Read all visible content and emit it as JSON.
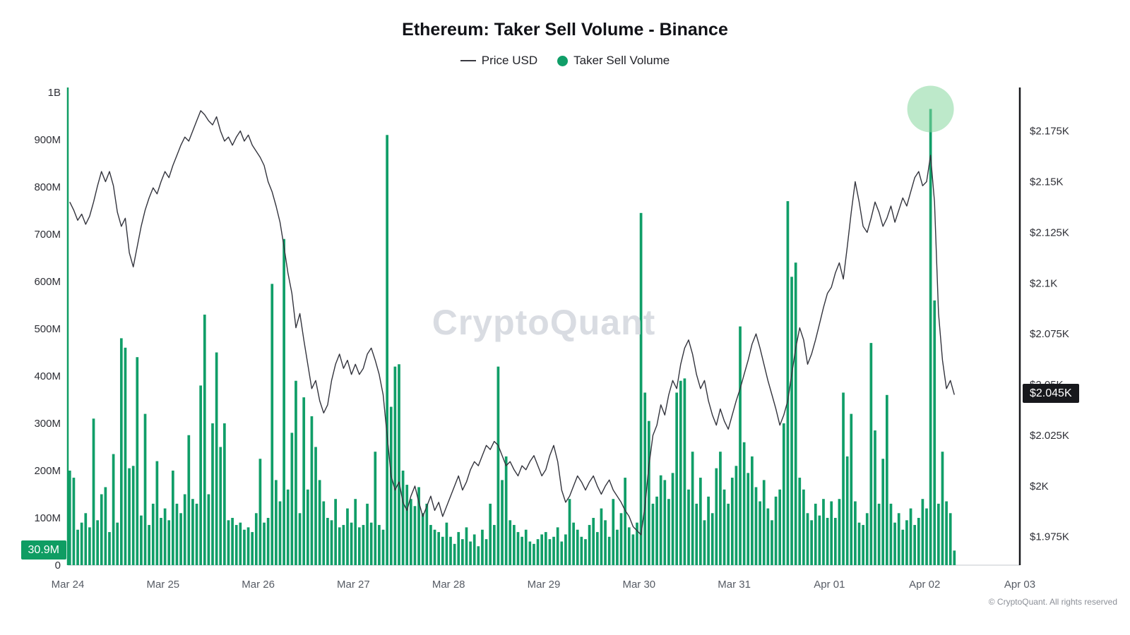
{
  "title": "Ethereum: Taker Sell Volume - Binance",
  "legend": [
    {
      "label": "Price USD",
      "type": "line",
      "color": "#3a3a42"
    },
    {
      "label": "Taker Sell Volume",
      "type": "dot",
      "color": "#109e68"
    }
  ],
  "watermark": "CryptoQuant",
  "footer": "© CryptoQuant. All rights reserved",
  "badges": {
    "volume_current": "30.9M",
    "price_current": "$2.045K"
  },
  "colors": {
    "volume_bar": "#109e68",
    "price_line": "#33343d",
    "left_spine": "#0f9d63",
    "right_spine": "#17181c",
    "baseline": "#d7dade",
    "highlight": "#86d79e"
  },
  "chart_data": {
    "type": "bar+line",
    "title": "Ethereum: Taker Sell Volume - Binance",
    "x_axis": {
      "tick_labels": [
        "Mar 24",
        "Mar 25",
        "Mar 26",
        "Mar 27",
        "Mar 28",
        "Mar 29",
        "Mar 30",
        "Mar 31",
        "Apr 01",
        "Apr 02",
        "Apr 03"
      ],
      "interval": "1 hour",
      "total_hours": 240
    },
    "left_axis": {
      "name": "Taker Sell Volume",
      "unit": "millions",
      "min_m": 0,
      "max_m": 1000,
      "ticks_m": [
        0,
        100,
        200,
        300,
        400,
        500,
        600,
        700,
        800,
        900,
        1000
      ],
      "tick_labels": [
        "0",
        "100M",
        "200M",
        "300M",
        "400M",
        "500M",
        "600M",
        "700M",
        "800M",
        "900M",
        "1B"
      ]
    },
    "right_axis": {
      "name": "Price USD",
      "scale_min": 1961,
      "scale_max": 2194,
      "ticks_usd": [
        1975,
        2000,
        2025,
        2050,
        2075,
        2100,
        2125,
        2150,
        2175
      ],
      "tick_labels": [
        "$1.975K",
        "$2K",
        "$2.025K",
        "$2.05K",
        "$2.075K",
        "$2.1K",
        "$2.125K",
        "$2.15K",
        "$2.175K"
      ]
    },
    "series": [
      {
        "name": "Taker Sell Volume",
        "type": "bar",
        "color": "#109e68",
        "unit": "M",
        "values_m": [
          200,
          185,
          75,
          90,
          110,
          80,
          310,
          95,
          150,
          165,
          70,
          235,
          90,
          480,
          460,
          205,
          210,
          440,
          105,
          320,
          85,
          130,
          220,
          100,
          120,
          95,
          200,
          130,
          110,
          150,
          275,
          140,
          130,
          380,
          530,
          150,
          300,
          450,
          250,
          300,
          95,
          100,
          85,
          90,
          75,
          80,
          70,
          110,
          225,
          90,
          100,
          595,
          180,
          135,
          690,
          160,
          280,
          390,
          110,
          355,
          160,
          315,
          250,
          180,
          135,
          100,
          95,
          140,
          80,
          85,
          120,
          90,
          140,
          80,
          85,
          130,
          90,
          240,
          85,
          75,
          910,
          335,
          420,
          425,
          200,
          170,
          140,
          125,
          165,
          110,
          130,
          85,
          75,
          70,
          60,
          90,
          60,
          45,
          70,
          55,
          80,
          50,
          65,
          40,
          75,
          55,
          130,
          85,
          420,
          180,
          230,
          95,
          85,
          70,
          60,
          75,
          50,
          45,
          55,
          65,
          70,
          55,
          60,
          80,
          50,
          65,
          140,
          90,
          75,
          60,
          55,
          85,
          100,
          70,
          120,
          95,
          60,
          140,
          75,
          110,
          185,
          80,
          65,
          90,
          745,
          365,
          305,
          130,
          145,
          190,
          180,
          140,
          195,
          365,
          390,
          395,
          160,
          240,
          130,
          185,
          95,
          145,
          110,
          205,
          240,
          160,
          130,
          185,
          210,
          505,
          260,
          195,
          230,
          165,
          135,
          180,
          120,
          95,
          145,
          160,
          300,
          770,
          610,
          640,
          185,
          160,
          110,
          95,
          130,
          105,
          140,
          100,
          135,
          100,
          140,
          365,
          230,
          320,
          135,
          90,
          85,
          110,
          470,
          285,
          130,
          225,
          360,
          130,
          90,
          110,
          75,
          95,
          120,
          85,
          100,
          140,
          120,
          965,
          560,
          130,
          240,
          135,
          110,
          30.9
        ]
      },
      {
        "name": "Price USD",
        "type": "line",
        "color": "#33343d",
        "unit": "USD",
        "values_usd": [
          2140,
          2136,
          2131,
          2134,
          2129,
          2133,
          2140,
          2148,
          2155,
          2150,
          2155,
          2148,
          2135,
          2128,
          2132,
          2115,
          2108,
          2118,
          2128,
          2136,
          2142,
          2147,
          2144,
          2150,
          2155,
          2152,
          2158,
          2163,
          2168,
          2172,
          2170,
          2175,
          2180,
          2185,
          2183,
          2180,
          2178,
          2182,
          2175,
          2170,
          2172,
          2168,
          2172,
          2175,
          2170,
          2173,
          2168,
          2165,
          2162,
          2158,
          2150,
          2145,
          2138,
          2130,
          2118,
          2105,
          2095,
          2078,
          2085,
          2072,
          2060,
          2048,
          2052,
          2042,
          2036,
          2040,
          2052,
          2060,
          2065,
          2058,
          2062,
          2055,
          2060,
          2055,
          2058,
          2065,
          2068,
          2062,
          2055,
          2045,
          2025,
          2005,
          1998,
          2002,
          1992,
          1988,
          1995,
          2000,
          1992,
          1985,
          1990,
          1995,
          1988,
          1992,
          1985,
          1990,
          1995,
          2000,
          2005,
          1998,
          2002,
          2008,
          2012,
          2010,
          2015,
          2020,
          2018,
          2022,
          2020,
          2015,
          2010,
          2012,
          2008,
          2005,
          2010,
          2008,
          2012,
          2015,
          2010,
          2005,
          2008,
          2015,
          2020,
          2012,
          1998,
          1992,
          1995,
          2000,
          2005,
          2002,
          1998,
          2002,
          2005,
          2000,
          1996,
          2000,
          2003,
          1998,
          1995,
          1992,
          1988,
          1985,
          1980,
          1978,
          1976,
          1990,
          2010,
          2025,
          2030,
          2040,
          2035,
          2045,
          2052,
          2048,
          2060,
          2068,
          2072,
          2065,
          2055,
          2048,
          2052,
          2042,
          2035,
          2030,
          2038,
          2032,
          2028,
          2035,
          2042,
          2048,
          2055,
          2062,
          2070,
          2075,
          2068,
          2060,
          2052,
          2045,
          2038,
          2030,
          2035,
          2042,
          2055,
          2068,
          2078,
          2072,
          2060,
          2065,
          2072,
          2080,
          2088,
          2095,
          2098,
          2105,
          2110,
          2102,
          2118,
          2135,
          2150,
          2140,
          2128,
          2125,
          2132,
          2140,
          2135,
          2128,
          2132,
          2138,
          2130,
          2136,
          2142,
          2138,
          2145,
          2152,
          2155,
          2148,
          2150,
          2163,
          2140,
          2085,
          2062,
          2048,
          2052,
          2045
        ]
      }
    ],
    "annotations": {
      "highlight_circle": {
        "hour_index": 217,
        "at_value_m": 965,
        "color": "#86d79e",
        "opacity": 0.55,
        "radius": 33
      }
    },
    "current": {
      "volume_m": 30.9,
      "price_usd": 2045
    }
  }
}
